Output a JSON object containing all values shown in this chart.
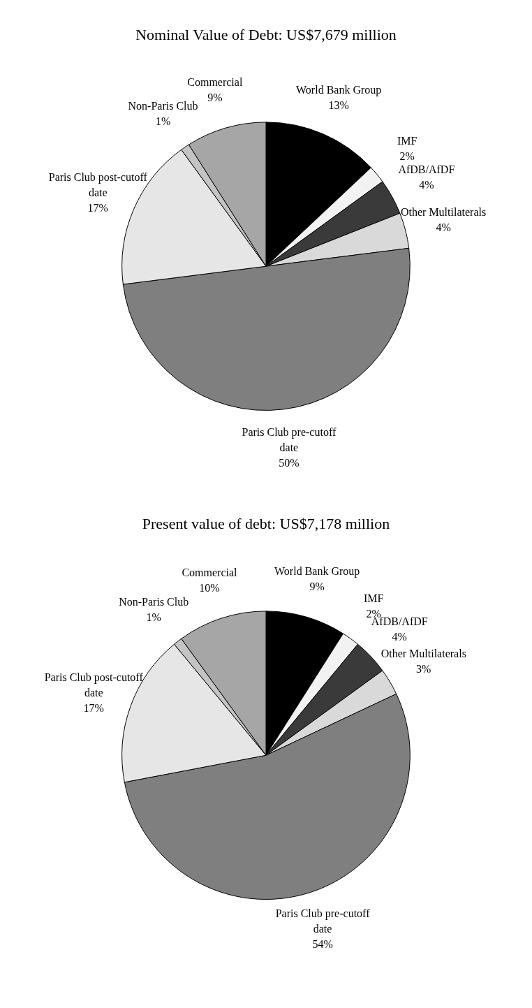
{
  "chart_data": [
    {
      "type": "pie",
      "title": "Nominal Value of Debt: US$7,679 million",
      "categories": [
        "World Bank Group",
        "IMF",
        "AfDB/AfDF",
        "Other Multilaterals",
        "Paris Club pre-cutoff date",
        "Paris Club post-cutoff date",
        "Non-Paris Club",
        "Commercial"
      ],
      "values": [
        13,
        2,
        4,
        4,
        50,
        17,
        1,
        9
      ],
      "value_labels": [
        "13%",
        "2%",
        "4%",
        "4%",
        "50%",
        "17%",
        "1%",
        "9%"
      ],
      "colors": [
        "#000000",
        "#f2f2f2",
        "#3a3a3a",
        "#d9d9d9",
        "#7f7f7f",
        "#e6e6e6",
        "#c4c4c4",
        "#a6a6a6"
      ],
      "legend": false
    },
    {
      "type": "pie",
      "title": "Present value of debt: US$7,178 million",
      "categories": [
        "World Bank Group",
        "IMF",
        "AfDB/AfDF",
        "Other Multilaterals",
        "Paris Club pre-cutoff date",
        "Paris Club post-cutoff date",
        "Non-Paris Club",
        "Commercial"
      ],
      "values": [
        9,
        2,
        4,
        3,
        54,
        17,
        1,
        10
      ],
      "value_labels": [
        "9%",
        "2%",
        "4%",
        "3%",
        "54%",
        "17%",
        "1%",
        "10%"
      ],
      "colors": [
        "#000000",
        "#f2f2f2",
        "#3a3a3a",
        "#d9d9d9",
        "#7f7f7f",
        "#e6e6e6",
        "#c4c4c4",
        "#a6a6a6"
      ],
      "legend": false
    }
  ]
}
